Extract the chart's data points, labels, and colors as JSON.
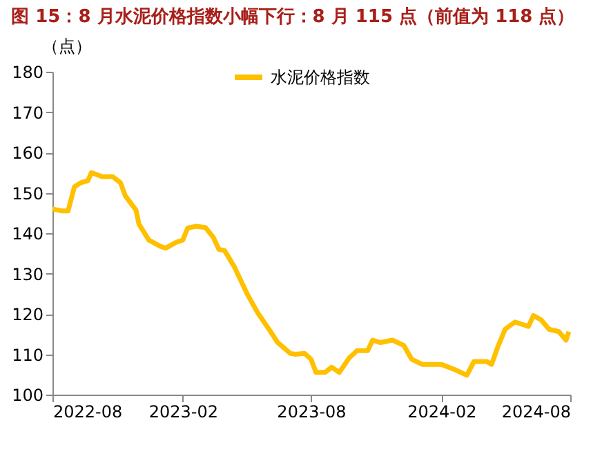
{
  "chart_data": {
    "type": "line",
    "title": "图 15：8 月水泥价格指数小幅下行：8 月 115 点（前值为 118 点）",
    "ylabel": "（点）",
    "x": [
      "2022-08-01",
      "2022-08-15",
      "2022-08-23",
      "2022-09-01",
      "2022-09-10",
      "2022-09-20",
      "2022-09-25",
      "2022-10-10",
      "2022-10-25",
      "2022-11-05",
      "2022-11-12",
      "2022-11-27",
      "2022-12-01",
      "2022-12-15",
      "2023-01-01",
      "2023-01-08",
      "2023-01-22",
      "2023-02-01",
      "2023-02-08",
      "2023-02-20",
      "2023-03-05",
      "2023-03-16",
      "2023-03-24",
      "2023-04-01",
      "2023-04-15",
      "2023-05-03",
      "2023-05-18",
      "2023-06-05",
      "2023-06-15",
      "2023-07-03",
      "2023-07-10",
      "2023-07-23",
      "2023-08-01",
      "2023-08-08",
      "2023-08-21",
      "2023-08-30",
      "2023-09-10",
      "2023-09-24",
      "2023-10-05",
      "2023-10-20",
      "2023-10-27",
      "2023-11-07",
      "2023-11-24",
      "2023-12-10",
      "2023-12-21",
      "2024-01-05",
      "2024-02-01",
      "2024-02-20",
      "2024-03-08",
      "2024-03-18",
      "2024-04-05",
      "2024-04-12",
      "2024-04-20",
      "2024-05-01",
      "2024-05-15",
      "2024-06-03",
      "2024-06-10",
      "2024-06-21",
      "2024-07-02",
      "2024-07-16",
      "2024-07-26",
      "2024-07-30"
    ],
    "series": [
      {
        "name": "水泥价格指数",
        "color": "#ffc000",
        "values": [
          146,
          145.5,
          145.5,
          151.5,
          152.5,
          153,
          155,
          154,
          154,
          152.5,
          149.2,
          145.7,
          142.3,
          138.3,
          136.7,
          136.3,
          137.7,
          138.3,
          141.3,
          141.7,
          141.4,
          139,
          136,
          135.7,
          131.6,
          124.9,
          120.2,
          115.6,
          112.9,
          110.2,
          110,
          110.2,
          108.8,
          105.5,
          105.5,
          106.8,
          105.5,
          109.1,
          110.9,
          110.9,
          113.5,
          112.9,
          113.5,
          112.2,
          108.8,
          107.5,
          107.5,
          106.2,
          104.8,
          108.2,
          108.2,
          107.5,
          111.5,
          116.2,
          118,
          116.9,
          119.6,
          118.5,
          116.2,
          115.6,
          113.5,
          115.6
        ]
      }
    ],
    "xlim": [
      "2022-08",
      "2024-08"
    ],
    "xticks": [
      "2022-08",
      "2023-02",
      "2023-08",
      "2024-02",
      "2024-08"
    ],
    "ylim": [
      100,
      180
    ],
    "yticks": [
      100,
      110,
      120,
      130,
      140,
      150,
      160,
      170,
      180
    ],
    "grid": false,
    "legend": "top",
    "line_style": "solid",
    "marker": "none"
  }
}
